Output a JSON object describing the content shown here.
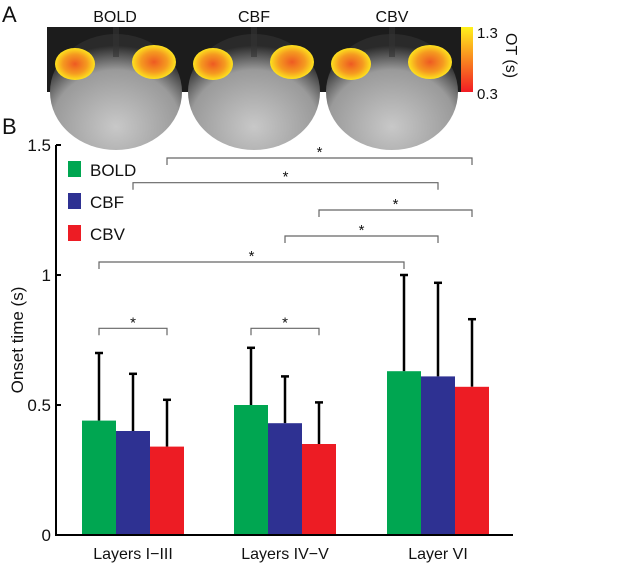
{
  "panel_a": {
    "label": "A",
    "titles": [
      "BOLD",
      "CBF",
      "CBV"
    ],
    "colorbar": {
      "max_label": "1.3",
      "min_label": "0.3",
      "title": "OT (s)",
      "min_color": "#f21c24",
      "max_color": "#fff21c"
    }
  },
  "chart_data": {
    "type": "bar",
    "panel_label": "B",
    "title": "",
    "xlabel": "",
    "ylabel": "Onset time (s)",
    "ylim": [
      0,
      1.5
    ],
    "yticks": [
      0,
      0.5,
      1,
      1.5
    ],
    "ytick_labels": [
      "0",
      "0.5",
      "1",
      "1.5"
    ],
    "categories": [
      "Layers I−III",
      "Layers IV−V",
      "Layer VI"
    ],
    "legend_position": "top-left",
    "series": [
      {
        "name": "BOLD",
        "color": "#00a651",
        "values": [
          0.44,
          0.5,
          0.63
        ],
        "error_upper": [
          0.7,
          0.72,
          1.0
        ]
      },
      {
        "name": "CBF",
        "color": "#2e3192",
        "values": [
          0.4,
          0.43,
          0.61
        ],
        "error_upper": [
          0.62,
          0.61,
          0.97
        ]
      },
      {
        "name": "CBV",
        "color": "#ed1c24",
        "values": [
          0.34,
          0.35,
          0.57
        ],
        "error_upper": [
          0.52,
          0.51,
          0.83
        ]
      }
    ],
    "significance": [
      {
        "from": [
          0,
          2
        ],
        "to": [
          2,
          2
        ],
        "y": 1.45,
        "label": "*"
      },
      {
        "from": [
          0,
          1
        ],
        "to": [
          2,
          1
        ],
        "y": 1.355,
        "label": "*"
      },
      {
        "from": [
          1,
          2
        ],
        "to": [
          2,
          2
        ],
        "y": 1.25,
        "label": "*"
      },
      {
        "from": [
          1,
          1
        ],
        "to": [
          2,
          1
        ],
        "y": 1.15,
        "label": "*"
      },
      {
        "from": [
          0,
          0
        ],
        "to": [
          2,
          0
        ],
        "y": 1.05,
        "label": "*"
      },
      {
        "from": [
          0,
          0
        ],
        "to": [
          0,
          2
        ],
        "y": 0.795,
        "label": "*"
      },
      {
        "from": [
          1,
          0
        ],
        "to": [
          1,
          2
        ],
        "y": 0.795,
        "label": "*"
      }
    ]
  }
}
